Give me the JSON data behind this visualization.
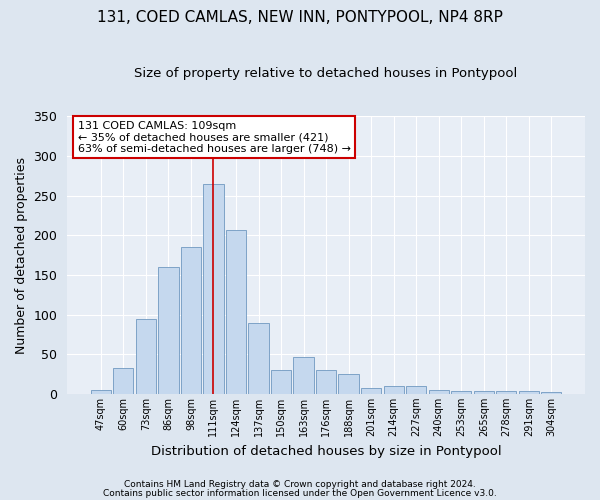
{
  "title": "131, COED CAMLAS, NEW INN, PONTYPOOL, NP4 8RP",
  "subtitle": "Size of property relative to detached houses in Pontypool",
  "xlabel": "Distribution of detached houses by size in Pontypool",
  "ylabel": "Number of detached properties",
  "categories": [
    "47sqm",
    "60sqm",
    "73sqm",
    "86sqm",
    "98sqm",
    "111sqm",
    "124sqm",
    "137sqm",
    "150sqm",
    "163sqm",
    "176sqm",
    "188sqm",
    "201sqm",
    "214sqm",
    "227sqm",
    "240sqm",
    "253sqm",
    "265sqm",
    "278sqm",
    "291sqm",
    "304sqm"
  ],
  "values": [
    5,
    33,
    95,
    160,
    185,
    265,
    207,
    89,
    30,
    47,
    30,
    25,
    7,
    10,
    10,
    5,
    4,
    4,
    4,
    4,
    3
  ],
  "bar_color": "#c5d8ee",
  "bar_edge_color": "#7099c0",
  "highlight_index": 5,
  "vline_color": "#cc0000",
  "annotation_text": "131 COED CAMLAS: 109sqm\n← 35% of detached houses are smaller (421)\n63% of semi-detached houses are larger (748) →",
  "annotation_box_color": "#ffffff",
  "annotation_box_edge": "#cc0000",
  "footer1": "Contains HM Land Registry data © Crown copyright and database right 2024.",
  "footer2": "Contains public sector information licensed under the Open Government Licence v3.0.",
  "bg_color": "#dde6f0",
  "plot_bg_color": "#e8eef6",
  "ylim": [
    0,
    350
  ],
  "title_fontsize": 11,
  "subtitle_fontsize": 9.5,
  "ylabel_fontsize": 9,
  "xlabel_fontsize": 9.5
}
